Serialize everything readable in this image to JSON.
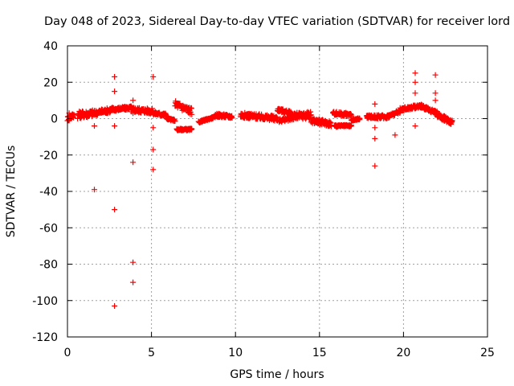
{
  "chart_data": {
    "type": "scatter",
    "title": "Day 048 of 2023, Sidereal Day-to-day VTEC variation (SDTVAR) for receiver lord",
    "xlabel": "GPS time / hours",
    "ylabel": "SDTVAR / TECUs",
    "xlim": [
      0,
      25
    ],
    "ylim": [
      -120,
      40
    ],
    "xticks": [
      0,
      5,
      10,
      15,
      20,
      25
    ],
    "yticks": [
      -120,
      -100,
      -80,
      -60,
      -40,
      -20,
      0,
      20,
      40
    ],
    "grid": true,
    "marker": "+",
    "color": "#ff0000",
    "series": [
      {
        "name": "SDTVAR",
        "segments": [
          {
            "t0": 0.0,
            "t1": 0.4,
            "v0": 0,
            "v1": 2,
            "spread": 3
          },
          {
            "t0": 0.6,
            "t1": 1.6,
            "v0": 2,
            "v1": 3,
            "spread": 4
          },
          {
            "t0": 1.6,
            "t1": 2.7,
            "v0": 3,
            "v1": 5,
            "spread": 3
          },
          {
            "t0": 2.7,
            "t1": 3.8,
            "v0": 5,
            "v1": 6,
            "spread": 2
          },
          {
            "t0": 3.8,
            "t1": 5.1,
            "v0": 5,
            "v1": 4,
            "spread": 3
          },
          {
            "t0": 5.1,
            "t1": 5.9,
            "v0": 3,
            "v1": 2,
            "spread": 2
          },
          {
            "t0": 5.9,
            "t1": 6.4,
            "v0": 0,
            "v1": -1,
            "spread": 1
          },
          {
            "t0": 6.4,
            "t1": 7.4,
            "v0": 8,
            "v1": 4,
            "spread": 4
          },
          {
            "t0": 6.5,
            "t1": 7.4,
            "v0": -6,
            "v1": -6,
            "spread": 1
          },
          {
            "t0": 7.8,
            "t1": 8.8,
            "v0": -2,
            "v1": 1,
            "spread": 1
          },
          {
            "t0": 8.8,
            "t1": 9.8,
            "v0": 2,
            "v1": 1,
            "spread": 2
          },
          {
            "t0": 10.3,
            "t1": 11.4,
            "v0": 2,
            "v1": 1,
            "spread": 3
          },
          {
            "t0": 11.4,
            "t1": 12.5,
            "v0": 1,
            "v1": 0,
            "spread": 3
          },
          {
            "t0": 12.5,
            "t1": 13.3,
            "v0": 5,
            "v1": 3,
            "spread": 2
          },
          {
            "t0": 12.6,
            "t1": 13.3,
            "v0": -1,
            "v1": 0,
            "spread": 2
          },
          {
            "t0": 13.3,
            "t1": 14.5,
            "v0": 1,
            "v1": 2,
            "spread": 4
          },
          {
            "t0": 14.5,
            "t1": 15.7,
            "v0": -1,
            "v1": -3,
            "spread": 3
          },
          {
            "t0": 15.8,
            "t1": 16.9,
            "v0": 3,
            "v1": 2,
            "spread": 2
          },
          {
            "t0": 15.9,
            "t1": 16.9,
            "v0": -4,
            "v1": -4,
            "spread": 1
          },
          {
            "t0": 16.9,
            "t1": 17.4,
            "v0": -1,
            "v1": 0,
            "spread": 1
          },
          {
            "t0": 17.8,
            "t1": 19.0,
            "v0": 1,
            "v1": 1,
            "spread": 2
          },
          {
            "t0": 19.0,
            "t1": 19.8,
            "v0": 1,
            "v1": 4,
            "spread": 2
          },
          {
            "t0": 19.8,
            "t1": 21.0,
            "v0": 5,
            "v1": 7,
            "spread": 2
          },
          {
            "t0": 21.0,
            "t1": 22.0,
            "v0": 7,
            "v1": 3,
            "spread": 2
          },
          {
            "t0": 22.0,
            "t1": 22.9,
            "v0": 2,
            "v1": -2,
            "spread": 3
          }
        ],
        "outliers": [
          [
            0.1,
            3
          ],
          [
            0.1,
            -1
          ],
          [
            1.6,
            -4
          ],
          [
            1.6,
            -39
          ],
          [
            2.8,
            23
          ],
          [
            2.8,
            15
          ],
          [
            2.8,
            -4
          ],
          [
            2.8,
            -50
          ],
          [
            2.8,
            -103
          ],
          [
            3.9,
            10
          ],
          [
            3.9,
            3
          ],
          [
            3.9,
            -24
          ],
          [
            3.9,
            -79
          ],
          [
            3.9,
            -90
          ],
          [
            5.1,
            23
          ],
          [
            5.1,
            -5
          ],
          [
            5.1,
            -17
          ],
          [
            5.1,
            -28
          ],
          [
            18.3,
            8
          ],
          [
            18.3,
            -5
          ],
          [
            18.3,
            -11
          ],
          [
            18.3,
            -26
          ],
          [
            19.5,
            -9
          ],
          [
            20.7,
            25
          ],
          [
            20.7,
            20
          ],
          [
            20.7,
            14
          ],
          [
            20.7,
            -4
          ],
          [
            21.9,
            24
          ],
          [
            21.9,
            14
          ],
          [
            21.9,
            10
          ]
        ]
      }
    ]
  }
}
